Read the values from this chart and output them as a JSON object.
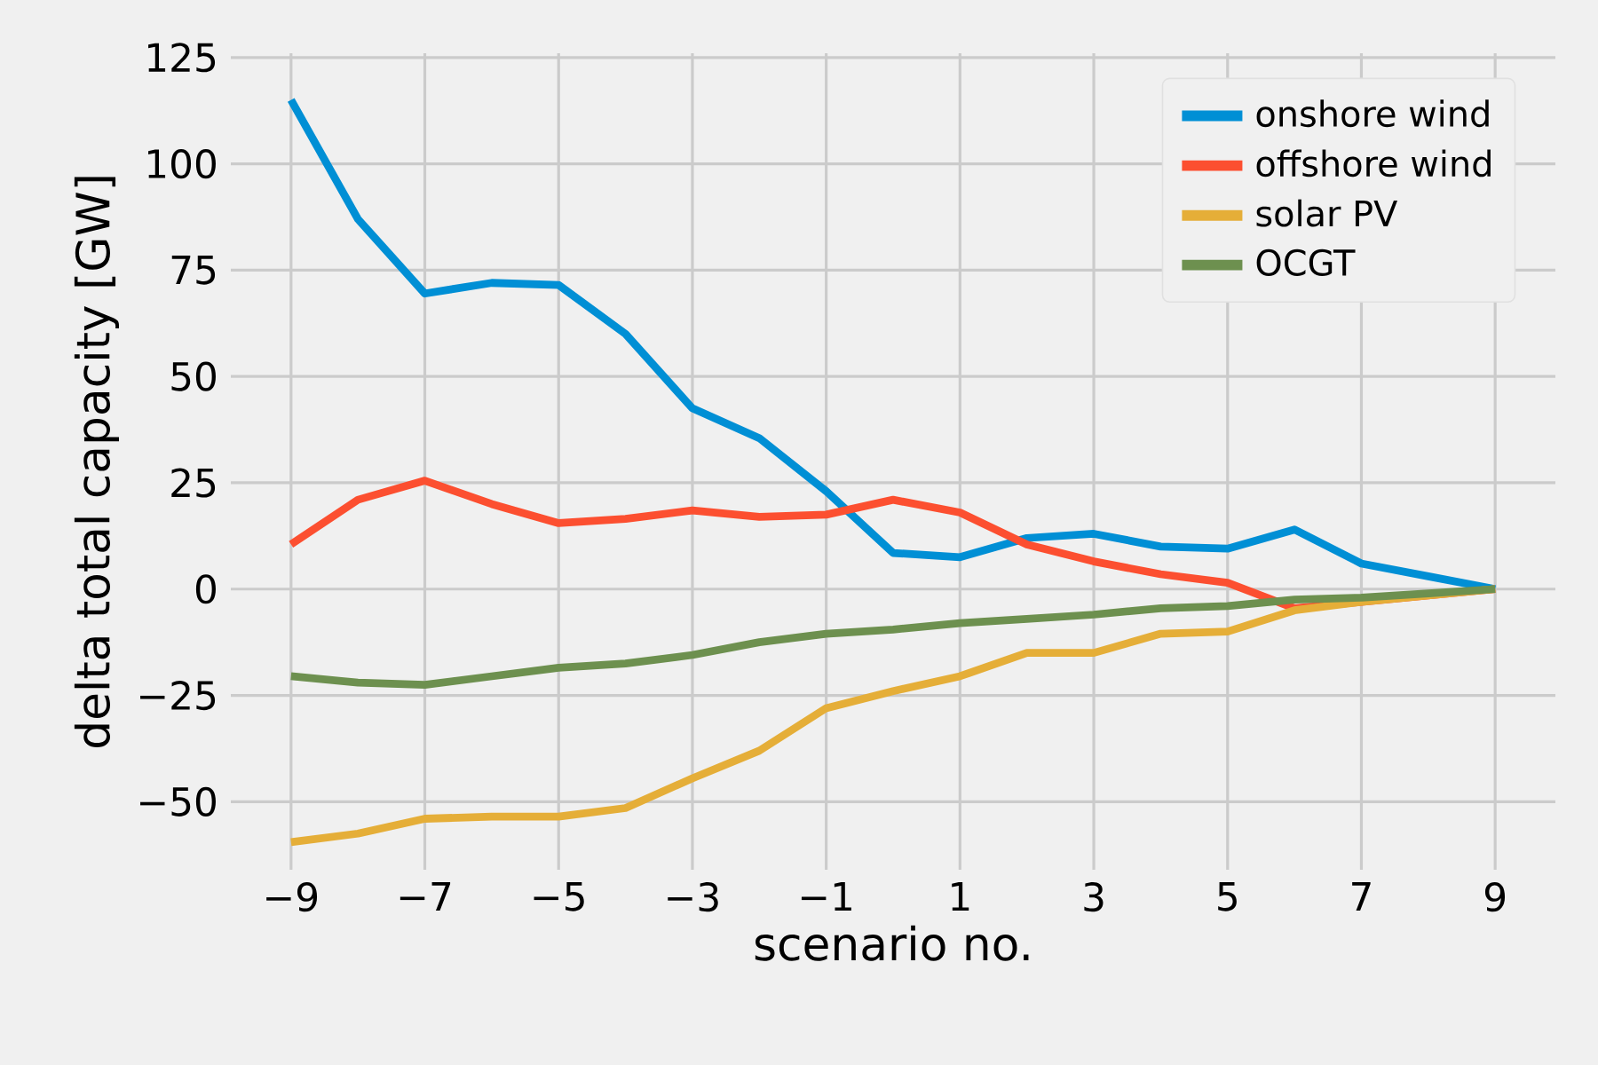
{
  "chart_data": {
    "type": "line",
    "xlabel": "scenario no.",
    "ylabel": "delta total capacity [GW]",
    "x": [
      -9,
      -8,
      -7,
      -6,
      -5,
      -4,
      -3,
      -2,
      -1,
      0,
      1,
      2,
      3,
      4,
      5,
      6,
      7,
      8,
      9
    ],
    "series": [
      {
        "name": "onshore wind",
        "color": "#008fd5",
        "values": [
          115,
          87,
          69.5,
          72,
          71.5,
          60,
          42.5,
          35.5,
          23,
          8.5,
          7.5,
          12,
          13,
          10,
          9.5,
          14,
          6,
          3,
          0
        ]
      },
      {
        "name": "offshore wind",
        "color": "#fc4f30",
        "values": [
          10.5,
          21,
          25.5,
          20,
          15.5,
          16.5,
          18.5,
          17,
          17.5,
          21,
          18,
          10.5,
          6.5,
          3.5,
          1.5,
          -4.5,
          -3,
          -1.5,
          0
        ]
      },
      {
        "name": "solar PV",
        "color": "#e5ae38",
        "values": [
          -59.5,
          -57.5,
          -54,
          -53.5,
          -53.5,
          -51.5,
          -44.5,
          -38,
          -28,
          -24,
          -20.5,
          -15,
          -15,
          -10.5,
          -10,
          -5,
          -3,
          -1.5,
          0
        ]
      },
      {
        "name": "OCGT",
        "color": "#6d904f",
        "values": [
          -20.5,
          -22,
          -22.5,
          -20.5,
          -18.5,
          -17.5,
          -15.5,
          -12.5,
          -10.5,
          -9.5,
          -8,
          -7,
          -6,
          -4.5,
          -4,
          -2.5,
          -2,
          -1,
          0
        ]
      }
    ],
    "xlim": [
      -9.9,
      9.9
    ],
    "ylim": [
      -66,
      126
    ],
    "xticks": [
      {
        "value": -9,
        "label": "−9"
      },
      {
        "value": -7,
        "label": "−7"
      },
      {
        "value": -5,
        "label": "−5"
      },
      {
        "value": -3,
        "label": "−3"
      },
      {
        "value": -1,
        "label": "−1"
      },
      1,
      3,
      5,
      7,
      9
    ],
    "yticks": [
      {
        "value": -50,
        "label": "−50"
      },
      {
        "value": -25,
        "label": "−25"
      },
      0,
      25,
      50,
      75,
      100,
      125
    ],
    "grid": true,
    "legend": "top right",
    "marker": "none",
    "line_style": "solid"
  }
}
